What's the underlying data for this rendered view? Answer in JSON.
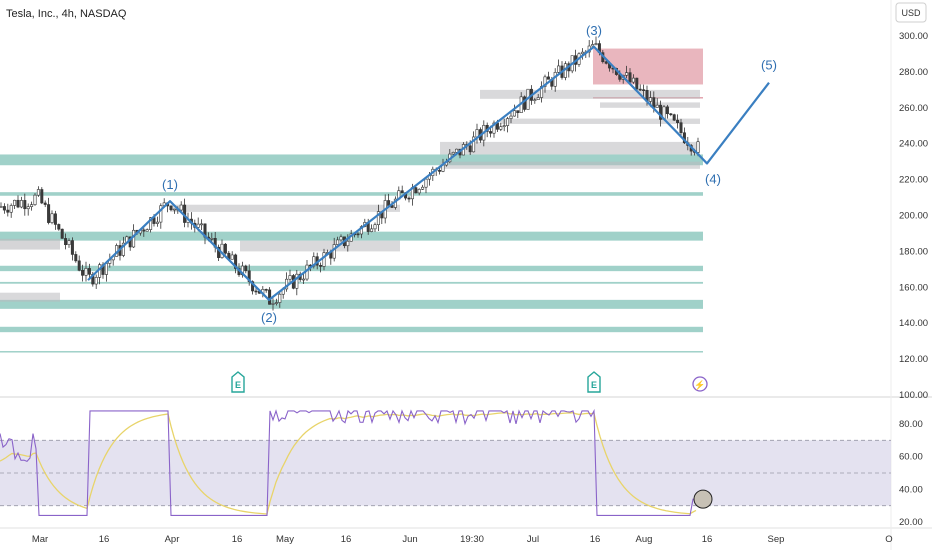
{
  "header": {
    "title": "Tesla, Inc., 4h, NASDAQ",
    "currency": "USD"
  },
  "colors": {
    "wave": "#3a7fc1",
    "wave_label": "#2f6fb1",
    "supply_zone": "#e4a4ae",
    "demand_zone": "#8fc9bf",
    "gray_zone": "#b9b9bd",
    "candle_up": "#ffffff",
    "candle_down": "#3b3b3b",
    "rsi_line": "#8a63c9",
    "rsi_ma": "#e8d46a",
    "rsi_band": "#d9d6e9",
    "event_icon": "#26a69a",
    "lightning_icon": "#8a63c9"
  },
  "chart_data": [
    {
      "type": "candlestick",
      "title": "Tesla, Inc., 4h, NASDAQ",
      "ylim": [
        100,
        310
      ],
      "y_ticks": [
        "300.00",
        "280.00",
        "260.00",
        "240.00",
        "220.00",
        "200.00",
        "180.00",
        "160.00",
        "140.00",
        "120.00",
        "100.00"
      ],
      "x_ticks": [
        "Mar",
        "16",
        "Apr",
        "16",
        "May",
        "16",
        "Jun",
        "19:30",
        "Jul",
        "16",
        "Aug",
        "16",
        "Sep",
        "O"
      ],
      "elliott_wave": [
        {
          "label": "",
          "price": 164
        },
        {
          "label": "(1)",
          "price": 208
        },
        {
          "label": "(2)",
          "price": 153
        },
        {
          "label": "(3)",
          "price": 294
        },
        {
          "label": "(4)",
          "price": 229
        },
        {
          "label": "(5)",
          "price": 274
        }
      ],
      "zones": [
        {
          "kind": "supply",
          "low": 273,
          "high": 293
        },
        {
          "kind": "supply-line",
          "low": 266,
          "high": 266
        },
        {
          "kind": "demand",
          "low": 228,
          "high": 234
        },
        {
          "kind": "demand",
          "low": 211,
          "high": 213
        },
        {
          "kind": "demand",
          "low": 186,
          "high": 191
        },
        {
          "kind": "demand",
          "low": 169,
          "high": 172
        },
        {
          "kind": "demand",
          "low": 162,
          "high": 163
        },
        {
          "kind": "demand",
          "low": 148,
          "high": 153
        },
        {
          "kind": "demand",
          "low": 135,
          "high": 138
        },
        {
          "kind": "demand",
          "low": 124,
          "high": 124.5
        }
      ],
      "events": [
        "E",
        "E",
        "⚡"
      ]
    },
    {
      "type": "line",
      "title": "",
      "ylim": [
        20,
        95
      ],
      "y_ticks": [
        "80.00",
        "60.00",
        "40.00",
        "20.00"
      ],
      "band": [
        30,
        70
      ],
      "midline": 50,
      "last_value": 34
    }
  ]
}
